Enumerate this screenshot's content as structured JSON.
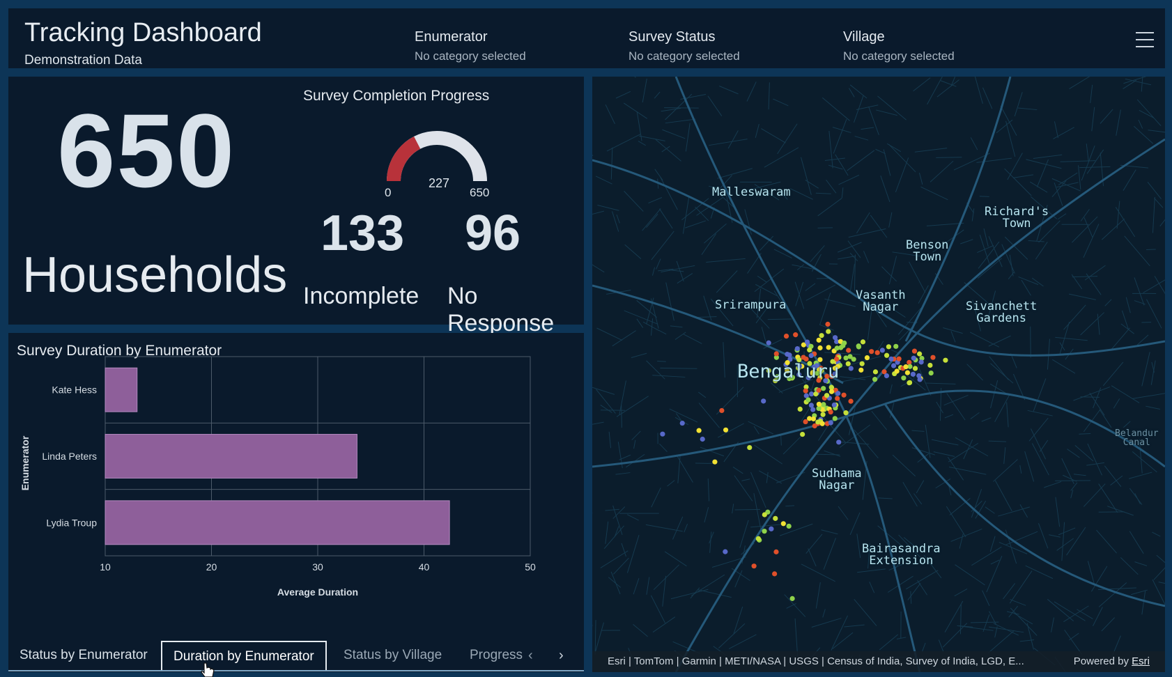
{
  "header": {
    "title": "Tracking Dashboard",
    "subtitle": "Demonstration Data",
    "selectors": [
      {
        "label": "Enumerator",
        "value": "No category selected"
      },
      {
        "label": "Survey Status",
        "value": "No category selected"
      },
      {
        "label": "Village",
        "value": "No category selected"
      }
    ]
  },
  "stats": {
    "households_value": "650",
    "households_label": "Households",
    "gauge": {
      "title": "Survey Completion Progress",
      "min": "0",
      "value": "227",
      "max": "650",
      "fraction": 0.349,
      "color_fill": "#b8323a",
      "color_track": "#dfe3ea"
    },
    "incomplete_value": "133",
    "incomplete_label": "Incomplete",
    "noresponse_value": "96",
    "noresponse_label": "No Response"
  },
  "chart": {
    "title": "Survey Duration by Enumerator"
  },
  "chart_data": {
    "type": "bar",
    "orientation": "horizontal",
    "categories": [
      "Kate Hess",
      "Linda Peters",
      "Lydia Troup"
    ],
    "values": [
      13,
      33.7,
      42.4
    ],
    "xlabel": "Average Duration",
    "ylabel": "Enumerator",
    "xlim": [
      10,
      50
    ],
    "xticks": [
      "10",
      "20",
      "30",
      "40",
      "50"
    ],
    "bar_color": "#8e5f9a",
    "grid": true
  },
  "tabs": [
    {
      "label": "Status by Enumerator",
      "active": false
    },
    {
      "label": "Duration by Enumerator",
      "active": true
    },
    {
      "label": "Status by Village",
      "active": false
    },
    {
      "label": "Progress",
      "active": false
    }
  ],
  "map": {
    "places": [
      {
        "name": "Malleswaram"
      },
      {
        "name": "Richard's\nTown"
      },
      {
        "name": "Benson\nTown"
      },
      {
        "name": "Vasanth\nNagar"
      },
      {
        "name": "Srirampura"
      },
      {
        "name": "Sivanchett\nGardens"
      },
      {
        "name": "Bengaluru"
      },
      {
        "name": "Belandur\nCanal"
      },
      {
        "name": "Sudhama\nNagar"
      },
      {
        "name": "Bairasandra\nExtension"
      }
    ],
    "attribution": "Esri | TomTom | Garmin | METI/NASA | USGS | Census of India, Survey of India, LGD, E...",
    "powered_prefix": "Powered by ",
    "powered_link": "Esri",
    "point_colors": [
      "#c6e03a",
      "#e0502a",
      "#f2e134",
      "#5869c9",
      "#8fd24a"
    ]
  }
}
